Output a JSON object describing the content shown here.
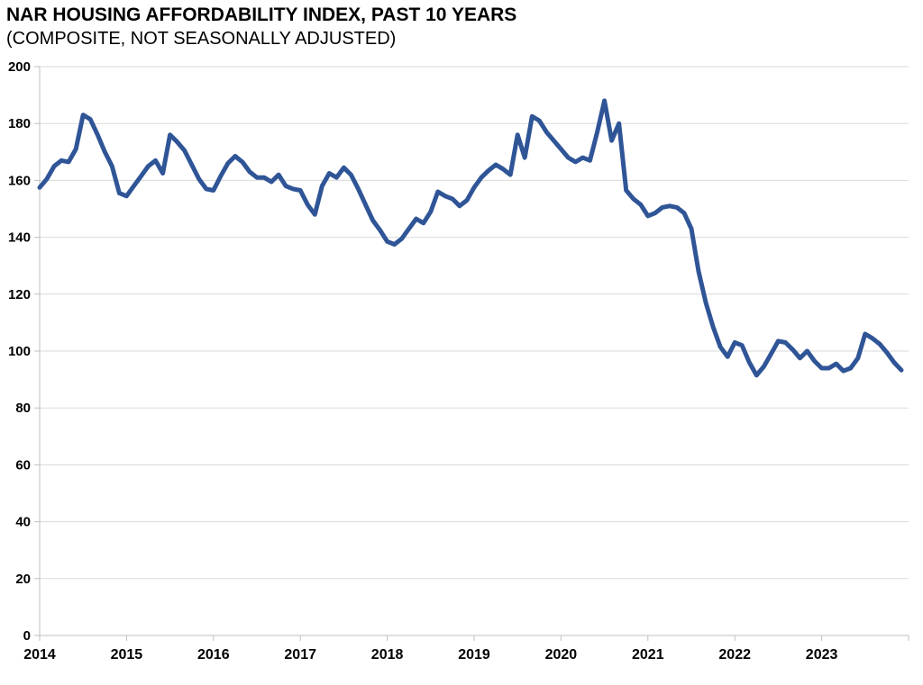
{
  "chart": {
    "title": "NAR HOUSING AFFORDABILITY INDEX, PAST 10 YEARS",
    "subtitle": "(COMPOSITE, NOT SEASONALLY ADJUSTED)",
    "line_color": "#2f5597",
    "gridline_color": "#dadada",
    "axis_color": "#bfbfbf",
    "label_color": "#000000"
  },
  "chart_data": {
    "type": "line",
    "title": "NAR HOUSING AFFORDABILITY INDEX, PAST 10 YEARS",
    "subtitle": "(COMPOSITE, NOT SEASONALLY ADJUSTED)",
    "x_start": "2014-01",
    "x_freq": "monthly",
    "x_tick_labels": [
      "2014",
      "2015",
      "2016",
      "2017",
      "2018",
      "2019",
      "2020",
      "2021",
      "2022",
      "2023"
    ],
    "y_tick_labels": [
      "0",
      "20",
      "40",
      "60",
      "80",
      "100",
      "120",
      "140",
      "160",
      "180",
      "200"
    ],
    "ylim": [
      0,
      200
    ],
    "grid": true,
    "legend": false,
    "series_name": "NAR Housing Affordability Index (Composite, NSA)",
    "values": [
      157.5,
      160.5,
      165,
      167,
      166.5,
      171,
      183,
      181.5,
      176,
      170,
      165,
      155.5,
      154.5,
      158,
      161.5,
      165,
      167,
      162.5,
      176,
      173.5,
      170.5,
      165.5,
      160.5,
      157,
      156.5,
      161.5,
      166,
      168.5,
      166.5,
      163,
      161,
      161,
      159.5,
      162,
      158,
      157,
      156.5,
      151.5,
      148,
      158,
      162.5,
      161,
      164.5,
      162,
      157,
      151.5,
      146,
      142.5,
      138.5,
      137.5,
      139.5,
      143,
      146.5,
      145,
      149,
      156,
      154.5,
      153.5,
      151,
      153,
      157.5,
      161,
      163.5,
      165.5,
      164,
      162,
      176,
      168,
      182.5,
      181,
      177,
      174,
      171,
      168,
      166.5,
      168,
      167,
      177,
      188,
      174,
      180,
      156.5,
      153.5,
      151.5,
      147.5,
      148.5,
      150.5,
      151,
      150.5,
      148.5,
      143,
      128,
      117,
      108.5,
      101.5,
      98,
      103,
      102,
      96,
      91.5,
      94.5,
      99,
      103.5,
      103,
      100.5,
      97.5,
      100,
      96.5,
      94,
      94,
      95.5,
      93,
      94,
      97.5,
      106,
      104.5,
      102.5,
      99.5,
      96,
      93.3
    ]
  }
}
